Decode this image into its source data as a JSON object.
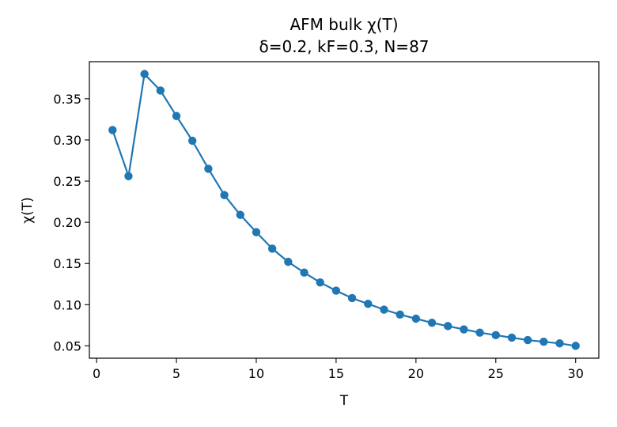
{
  "chart_data": {
    "type": "line",
    "title": "AFM bulk χ(T)",
    "subtitle": "δ=0.2, kF=0.3, N=87",
    "xlabel": "T",
    "ylabel": "χ(T)",
    "xlim": [
      -0.45,
      31.45
    ],
    "ylim": [
      0.035,
      0.395
    ],
    "xticks": [
      0,
      5,
      10,
      15,
      20,
      25,
      30
    ],
    "xtick_labels": [
      "0",
      "5",
      "10",
      "15",
      "20",
      "25",
      "30"
    ],
    "yticks": [
      0.05,
      0.1,
      0.15,
      0.2,
      0.25,
      0.3,
      0.35
    ],
    "ytick_labels": [
      "0.05",
      "0.10",
      "0.15",
      "0.20",
      "0.25",
      "0.30",
      "0.35"
    ],
    "grid": false,
    "legend": "none",
    "color": "#1f77b4",
    "series": [
      {
        "x": [
          1,
          2,
          3,
          4,
          5,
          6,
          7,
          8,
          9,
          10,
          11,
          12,
          13,
          14,
          15,
          16,
          17,
          18,
          19,
          20,
          21,
          22,
          23,
          24,
          25,
          26,
          27,
          28,
          29,
          30
        ],
        "values": [
          0.312,
          0.256,
          0.38,
          0.36,
          0.329,
          0.299,
          0.265,
          0.233,
          0.209,
          0.188,
          0.168,
          0.152,
          0.139,
          0.127,
          0.117,
          0.108,
          0.101,
          0.094,
          0.088,
          0.083,
          0.078,
          0.074,
          0.07,
          0.066,
          0.063,
          0.06,
          0.057,
          0.055,
          0.053,
          0.05
        ]
      }
    ]
  }
}
